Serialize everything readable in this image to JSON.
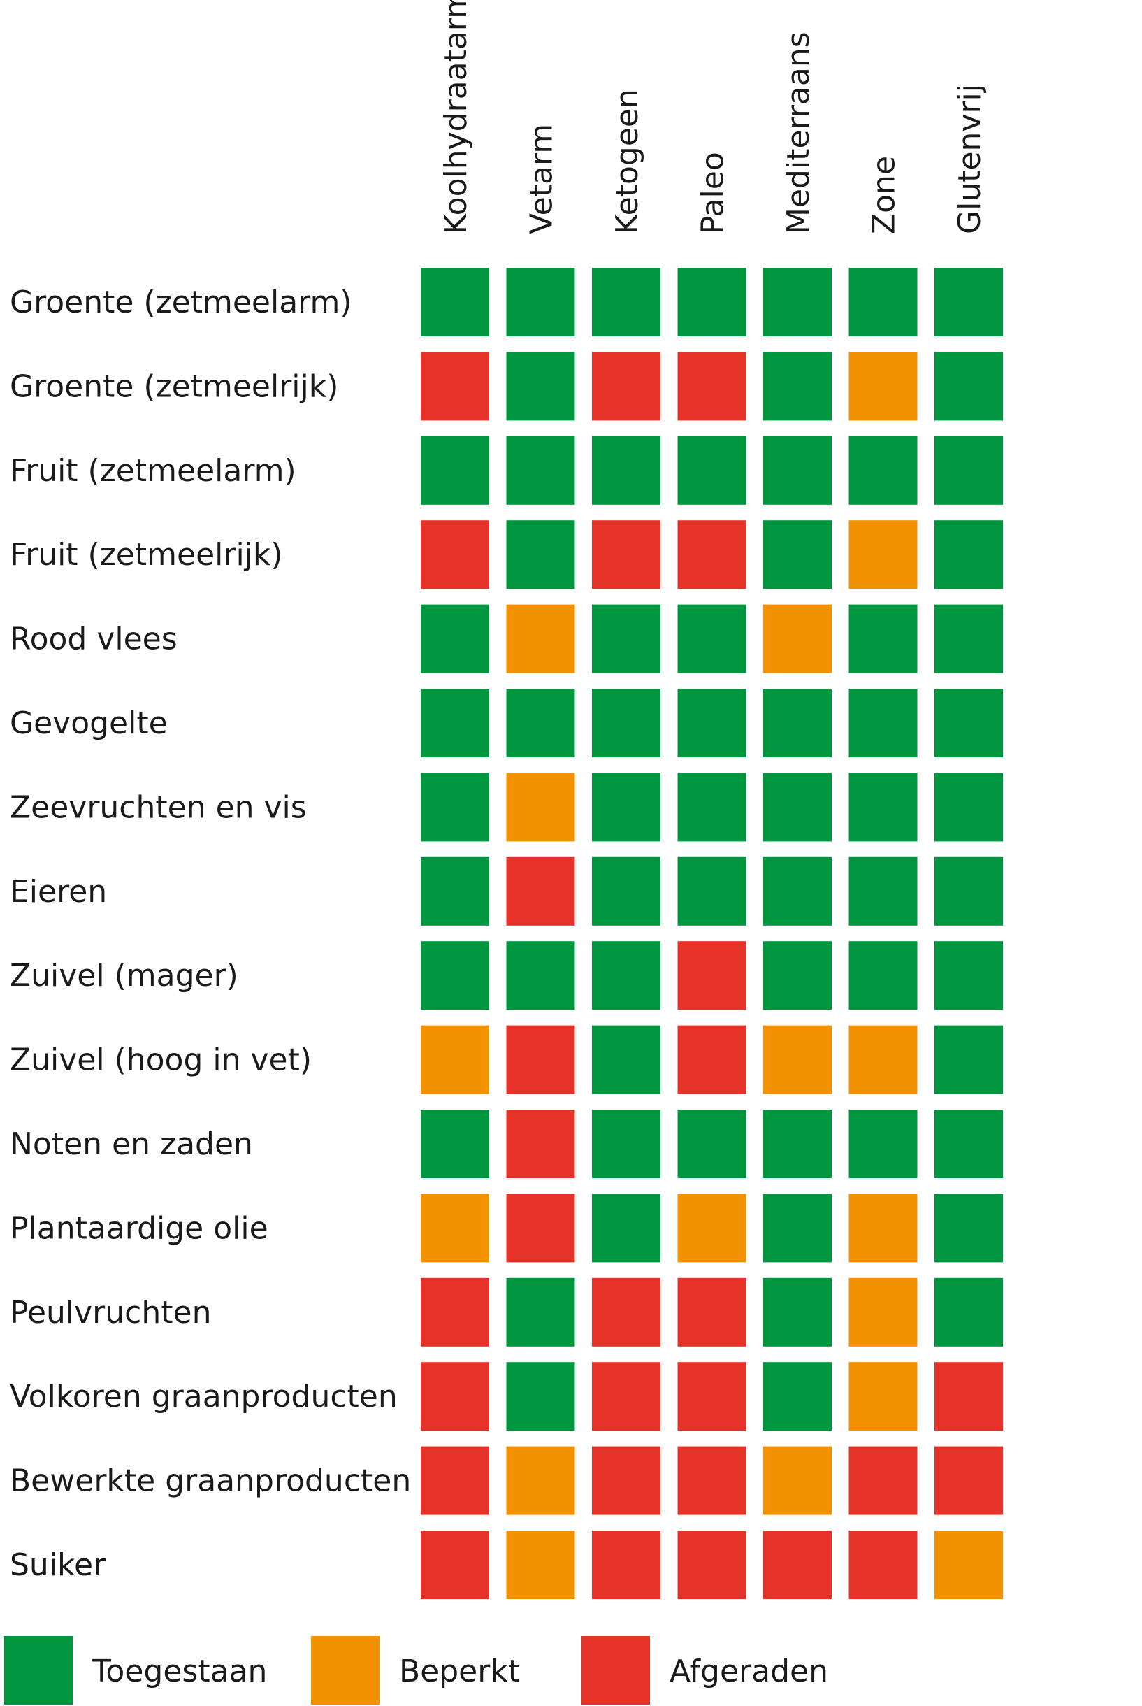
{
  "chart_data": {
    "type": "heatmap",
    "columns": [
      "Koolhydraatarm",
      "Vetarm",
      "Ketogeen",
      "Paleo",
      "Mediterraans",
      "Zone",
      "Glutenvrij"
    ],
    "rows": [
      {
        "label": "Groente (zetmeelarm)",
        "values": [
          "Toegestaan",
          "Toegestaan",
          "Toegestaan",
          "Toegestaan",
          "Toegestaan",
          "Toegestaan",
          "Toegestaan"
        ]
      },
      {
        "label": "Groente (zetmeelrijk)",
        "values": [
          "Afgeraden",
          "Toegestaan",
          "Afgeraden",
          "Afgeraden",
          "Toegestaan",
          "Beperkt",
          "Toegestaan"
        ]
      },
      {
        "label": "Fruit (zetmeelarm)",
        "values": [
          "Toegestaan",
          "Toegestaan",
          "Toegestaan",
          "Toegestaan",
          "Toegestaan",
          "Toegestaan",
          "Toegestaan"
        ]
      },
      {
        "label": "Fruit (zetmeelrijk)",
        "values": [
          "Afgeraden",
          "Toegestaan",
          "Afgeraden",
          "Afgeraden",
          "Toegestaan",
          "Beperkt",
          "Toegestaan"
        ]
      },
      {
        "label": "Rood vlees",
        "values": [
          "Toegestaan",
          "Beperkt",
          "Toegestaan",
          "Toegestaan",
          "Beperkt",
          "Toegestaan",
          "Toegestaan"
        ]
      },
      {
        "label": "Gevogelte",
        "values": [
          "Toegestaan",
          "Toegestaan",
          "Toegestaan",
          "Toegestaan",
          "Toegestaan",
          "Toegestaan",
          "Toegestaan"
        ]
      },
      {
        "label": "Zeevruchten en vis",
        "values": [
          "Toegestaan",
          "Beperkt",
          "Toegestaan",
          "Toegestaan",
          "Toegestaan",
          "Toegestaan",
          "Toegestaan"
        ]
      },
      {
        "label": "Eieren",
        "values": [
          "Toegestaan",
          "Afgeraden",
          "Toegestaan",
          "Toegestaan",
          "Toegestaan",
          "Toegestaan",
          "Toegestaan"
        ]
      },
      {
        "label": "Zuivel (mager)",
        "values": [
          "Toegestaan",
          "Toegestaan",
          "Toegestaan",
          "Afgeraden",
          "Toegestaan",
          "Toegestaan",
          "Toegestaan"
        ]
      },
      {
        "label": "Zuivel (hoog in vet)",
        "values": [
          "Beperkt",
          "Afgeraden",
          "Toegestaan",
          "Afgeraden",
          "Beperkt",
          "Beperkt",
          "Toegestaan"
        ]
      },
      {
        "label": "Noten en zaden",
        "values": [
          "Toegestaan",
          "Afgeraden",
          "Toegestaan",
          "Toegestaan",
          "Toegestaan",
          "Toegestaan",
          "Toegestaan"
        ]
      },
      {
        "label": "Plantaardige olie",
        "values": [
          "Beperkt",
          "Afgeraden",
          "Toegestaan",
          "Beperkt",
          "Toegestaan",
          "Beperkt",
          "Toegestaan"
        ]
      },
      {
        "label": "Peulvruchten",
        "values": [
          "Afgeraden",
          "Toegestaan",
          "Afgeraden",
          "Afgeraden",
          "Toegestaan",
          "Beperkt",
          "Toegestaan"
        ]
      },
      {
        "label": "Volkoren graanproducten",
        "values": [
          "Afgeraden",
          "Toegestaan",
          "Afgeraden",
          "Afgeraden",
          "Toegestaan",
          "Beperkt",
          "Afgeraden"
        ]
      },
      {
        "label": "Bewerkte graanproducten",
        "values": [
          "Afgeraden",
          "Beperkt",
          "Afgeraden",
          "Afgeraden",
          "Beperkt",
          "Afgeraden",
          "Afgeraden"
        ]
      },
      {
        "label": "Suiker",
        "values": [
          "Afgeraden",
          "Beperkt",
          "Afgeraden",
          "Afgeraden",
          "Afgeraden",
          "Afgeraden",
          "Beperkt"
        ]
      }
    ],
    "legend": [
      {
        "key": "Toegestaan",
        "label": "Toegestaan",
        "color": "#00963f"
      },
      {
        "key": "Beperkt",
        "label": "Beperkt",
        "color": "#f39200"
      },
      {
        "key": "Afgeraden",
        "label": "Afgeraden",
        "color": "#e5332a"
      }
    ],
    "legend_position": "bottom"
  }
}
